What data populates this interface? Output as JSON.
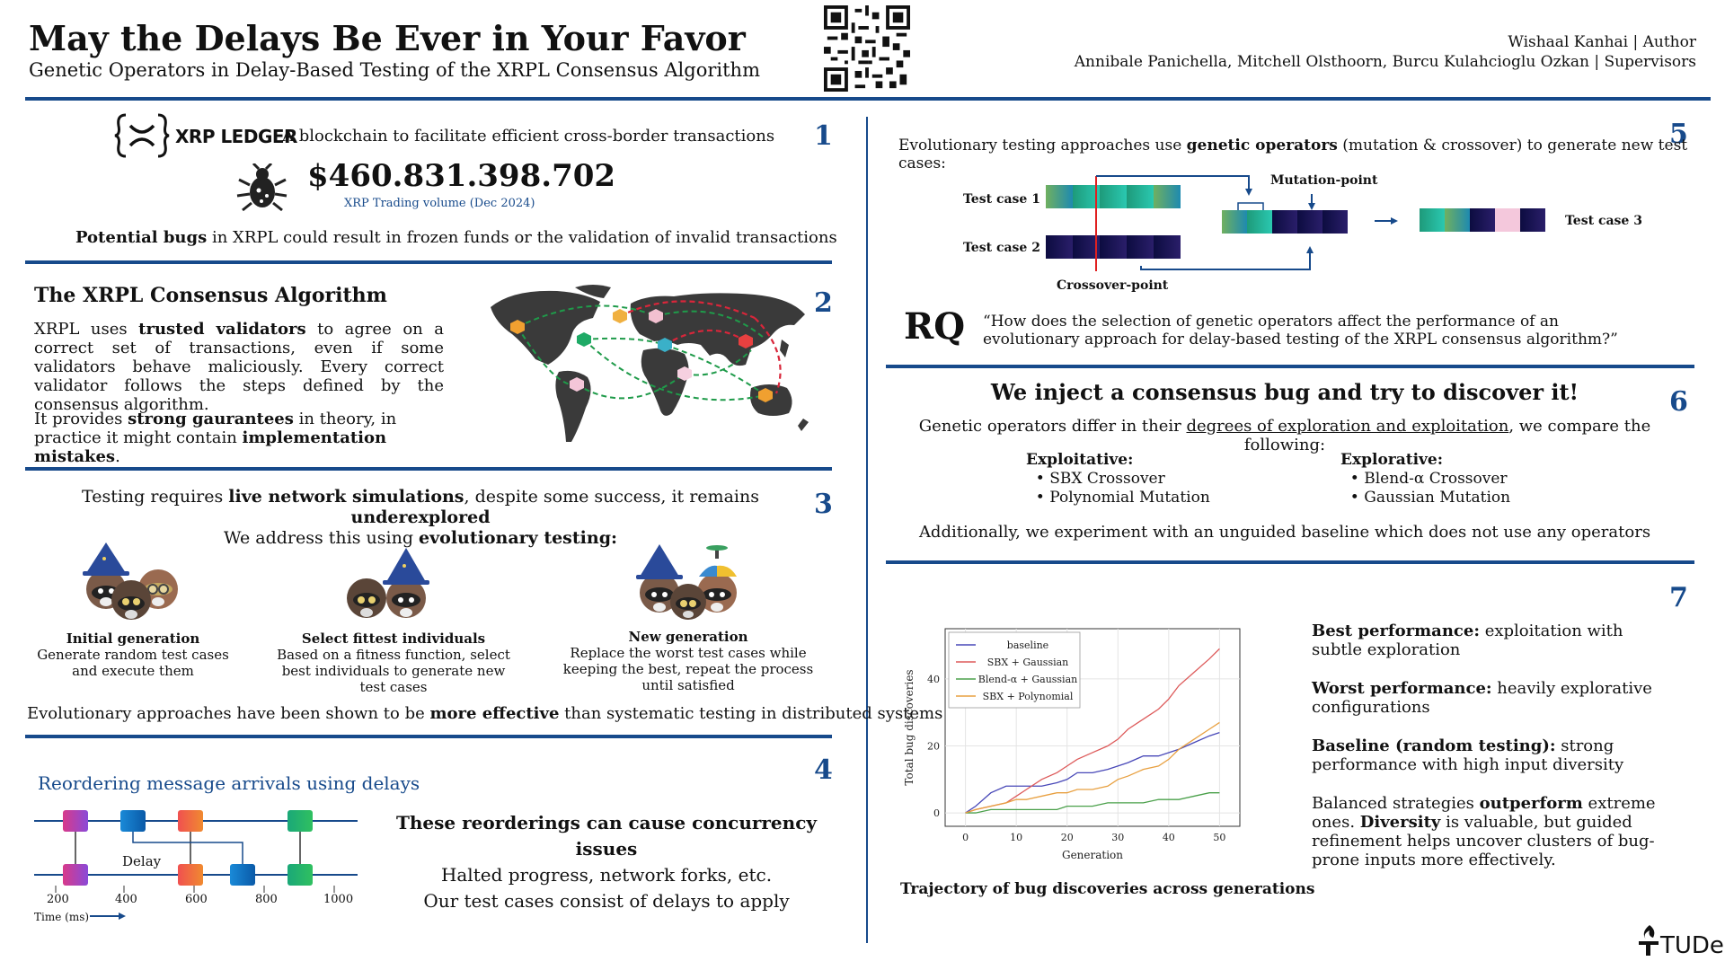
{
  "header": {
    "title": "May the Delays Be Ever in Your Favor",
    "subtitle": "Genetic Operators in Delay-Based Testing of the XRPL Consensus Algorithm",
    "author_line": "Wishaal Kanhai | Author",
    "supervisors_line": "Annibale Panichella, Mitchell Olsthoorn, Burcu Kulahcioglu Ozkan | Supervisors"
  },
  "section1": {
    "number": "1",
    "logo_text": "XRP LEDGER",
    "tagline": "A blockchain to facilitate efficient cross-border transactions",
    "volume": "$460.831.398.702",
    "volume_caption": "XRP Trading volume (Dec 2024)",
    "bugs_bold": "Potential bugs",
    "bugs_rest": " in XRPL could result in frozen funds or the validation of invalid transactions"
  },
  "section2": {
    "number": "2",
    "heading": "The XRPL Consensus Algorithm",
    "p1_a": "XRPL uses ",
    "p1_b": "trusted validators",
    "p1_c": " to agree on a correct set of transactions, even if some validators behave maliciously. Every correct validator follows the steps defined by the consensus algorithm.",
    "p2_a": "It provides ",
    "p2_b": "strong gaurantees",
    "p2_c": " in theory, in practice it might contain ",
    "p2_d": "implementation mistakes",
    "p2_e": "."
  },
  "section3": {
    "number": "3",
    "line1_a": "Testing requires ",
    "line1_b": "live network simulations",
    "line1_c": ", despite some success, it remains ",
    "line1_d": "underexplored",
    "line2_a": "We address this using ",
    "line2_b": "evolutionary testing:",
    "steps": [
      {
        "title": "Initial generation",
        "desc": "Generate random test cases and execute them"
      },
      {
        "title": "Select fittest individuals",
        "desc": "Based on a fitness function, select best individuals to generate new test cases"
      },
      {
        "title": "New generation",
        "desc": "Replace the worst test cases while keeping the best, repeat the process until satisfied"
      }
    ],
    "footer_a": "Evolutionary approaches have been shown to be ",
    "footer_b": "more effective",
    "footer_c": " than systematic testing in distributed systems"
  },
  "section4": {
    "number": "4",
    "heading": "Reordering message arrivals using delays",
    "delay_label": "Delay",
    "ticks": [
      "200",
      "400",
      "600",
      "800",
      "1000"
    ],
    "axis_label": "Time (ms)",
    "claim": "These reorderings can cause concurrency issues",
    "line2": "Halted progress, network forks, etc.",
    "line3": "Our test cases consist of delays to apply"
  },
  "section5": {
    "number": "5",
    "intro_a": "Evolutionary testing approaches use ",
    "intro_b": "genetic operators",
    "intro_c": " (mutation & crossover) to generate new test cases:",
    "tc1": "Test case 1",
    "tc2": "Test case 2",
    "tc3": "Test case 3",
    "mutation": "Mutation-point",
    "crossover": "Crossover-point",
    "rq_label": "RQ",
    "rq_text": "“How does the selection of genetic operators affect the performance of an evolutionary approach for delay-based testing of the XRPL consensus algorithm?”"
  },
  "section6": {
    "number": "6",
    "heading": "We inject a consensus bug and try to discover it!",
    "intro_a": "Genetic operators differ in their ",
    "intro_u": "degrees of exploration and exploitation",
    "intro_c": ", we compare the following:",
    "exploit_title": "Exploitative:",
    "exploit_items": [
      "SBX Crossover",
      "Polynomial Mutation"
    ],
    "explore_title": "Explorative:",
    "explore_items": [
      "Blend-α Crossover",
      "Gaussian Mutation"
    ],
    "footer": "Additionally, we experiment with an unguided baseline which does not use any operators"
  },
  "section7": {
    "number": "7",
    "caption": "Trajectory of bug discoveries across generations",
    "f1_b": "Best performance:",
    "f1_r": " exploitation with subtle exploration",
    "f2_b": "Worst performance:",
    "f2_r": " heavily explorative configurations",
    "f3_b": "Baseline (random testing):",
    "f3_r": " strong performance with high input diversity",
    "f4_a": "Balanced strategies ",
    "f4_b": "outperform",
    "f4_c": " extreme ones. ",
    "f4_d": "Diversity",
    "f4_e": " is valuable, but guided refinement helps uncover clusters of bug-prone inputs more effectively."
  },
  "footer": {
    "logo": "TUDelft"
  },
  "colors": {
    "accent": "#174a8b"
  },
  "chart_data": {
    "type": "line",
    "xlabel": "Generation",
    "ylabel": "Total bug discoveries",
    "xlim": [
      -4,
      54
    ],
    "ylim": [
      -4,
      55
    ],
    "xticks": [
      0,
      10,
      20,
      30,
      40,
      50
    ],
    "yticks": [
      0,
      20,
      40
    ],
    "grid": true,
    "legend": "top-left",
    "x": [
      0,
      2,
      5,
      8,
      10,
      12,
      15,
      18,
      20,
      22,
      25,
      28,
      30,
      32,
      35,
      38,
      40,
      42,
      45,
      48,
      50
    ],
    "series": [
      {
        "name": "baseline",
        "color": "#4848b8",
        "values": [
          0,
          2,
          6,
          8,
          8,
          8,
          8,
          9,
          10,
          12,
          12,
          13,
          14,
          15,
          17,
          17,
          18,
          19,
          21,
          23,
          24
        ]
      },
      {
        "name": "SBX + Gaussian",
        "color": "#dd5a5a",
        "values": [
          0,
          1,
          2,
          3,
          5,
          7,
          10,
          12,
          14,
          16,
          18,
          20,
          22,
          25,
          28,
          31,
          34,
          38,
          42,
          46,
          49
        ]
      },
      {
        "name": "Blend-α + Gaussian",
        "color": "#4aa04a",
        "values": [
          0,
          0,
          1,
          1,
          1,
          1,
          1,
          1,
          2,
          2,
          2,
          3,
          3,
          3,
          3,
          4,
          4,
          4,
          5,
          6,
          6
        ]
      },
      {
        "name": "SBX + Polynomial",
        "color": "#e8a040",
        "values": [
          0,
          1,
          2,
          3,
          4,
          4,
          5,
          6,
          6,
          7,
          7,
          8,
          10,
          11,
          13,
          14,
          16,
          19,
          22,
          25,
          27
        ]
      }
    ]
  }
}
